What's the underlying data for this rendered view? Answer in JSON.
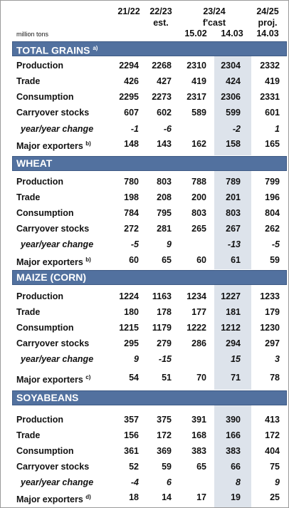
{
  "header": {
    "unit": "million tons",
    "periods": [
      {
        "label": "21/22"
      },
      {
        "label": "22/23",
        "sub": "est."
      },
      {
        "label": "23/24",
        "sub": "f'cast",
        "dates": [
          "15.02",
          "14.03"
        ]
      },
      {
        "label": "24/25",
        "sub": "proj.",
        "date": "14.03"
      }
    ]
  },
  "sections": [
    {
      "title": "TOTAL GRAINS",
      "note": "a)",
      "rows": [
        {
          "label": "Production",
          "values": [
            2294,
            2268,
            2310,
            2304,
            2332
          ]
        },
        {
          "label": "Trade",
          "values": [
            426,
            427,
            419,
            424,
            419
          ]
        },
        {
          "label": "Consumption",
          "values": [
            2295,
            2273,
            2317,
            2306,
            2331
          ]
        },
        {
          "label": "Carryover stocks",
          "values": [
            607,
            602,
            589,
            599,
            601
          ]
        },
        {
          "label": "year/year change",
          "values": [
            -1,
            -6,
            null,
            -2,
            1
          ]
        },
        {
          "label": "Major exporters",
          "note": "b)",
          "values": [
            148,
            143,
            162,
            158,
            165
          ]
        }
      ]
    },
    {
      "title": "WHEAT",
      "rows": [
        {
          "label": "Production",
          "values": [
            780,
            803,
            788,
            789,
            799
          ]
        },
        {
          "label": "Trade",
          "values": [
            198,
            208,
            200,
            201,
            196
          ]
        },
        {
          "label": "Consumption",
          "values": [
            784,
            795,
            803,
            803,
            804
          ]
        },
        {
          "label": "Carryover stocks",
          "values": [
            272,
            281,
            265,
            267,
            262
          ]
        },
        {
          "label": "year/year change",
          "values": [
            -5,
            9,
            null,
            -13,
            -5
          ]
        },
        {
          "label": "Major exporters",
          "note": "b)",
          "values": [
            60,
            65,
            60,
            61,
            59
          ]
        }
      ]
    },
    {
      "title": "MAIZE (CORN)",
      "rows": [
        {
          "label": "Production",
          "values": [
            1224,
            1163,
            1234,
            1227,
            1233
          ]
        },
        {
          "label": "Trade",
          "values": [
            180,
            178,
            177,
            181,
            179
          ]
        },
        {
          "label": "Consumption",
          "values": [
            1215,
            1179,
            1222,
            1212,
            1230
          ]
        },
        {
          "label": "Carryover stocks",
          "values": [
            295,
            279,
            286,
            294,
            297
          ]
        },
        {
          "label": "year/year change",
          "values": [
            9,
            -15,
            null,
            15,
            3
          ]
        },
        {
          "label": "Major exporters",
          "note": "c)",
          "values": [
            54,
            51,
            70,
            71,
            78
          ]
        }
      ]
    },
    {
      "title": "SOYABEANS",
      "rows": [
        {
          "label": "Production",
          "values": [
            357,
            375,
            391,
            390,
            413
          ]
        },
        {
          "label": "Trade",
          "values": [
            156,
            172,
            168,
            166,
            172
          ]
        },
        {
          "label": "Consumption",
          "values": [
            361,
            369,
            383,
            383,
            404
          ]
        },
        {
          "label": "Carryover stocks",
          "values": [
            52,
            59,
            65,
            66,
            75
          ]
        },
        {
          "label": "year/year change",
          "values": [
            -4,
            6,
            null,
            8,
            9
          ]
        },
        {
          "label": "Major exporters",
          "note": "d)",
          "values": [
            18,
            14,
            17,
            19,
            25
          ]
        }
      ]
    }
  ]
}
